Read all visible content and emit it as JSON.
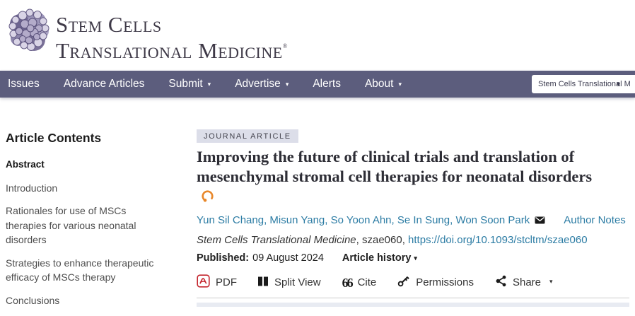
{
  "brand": {
    "logo_line1": "Stem Cells",
    "logo_line2": "Translational Medicine",
    "trademark": "®"
  },
  "nav": {
    "items": [
      {
        "label": "Issues",
        "has_caret": false
      },
      {
        "label": "Advance Articles",
        "has_caret": false
      },
      {
        "label": "Submit",
        "has_caret": true
      },
      {
        "label": "Advertise",
        "has_caret": true
      },
      {
        "label": "Alerts",
        "has_caret": false
      },
      {
        "label": "About",
        "has_caret": true
      }
    ],
    "journal_select": "Stem Cells Translational M"
  },
  "sidebar": {
    "title": "Article Contents",
    "items": [
      {
        "label": "Abstract",
        "active": true
      },
      {
        "label": "Introduction",
        "active": false
      },
      {
        "label": "Rationales for use of MSCs therapies for various neonatal disorders",
        "active": false
      },
      {
        "label": "Strategies to enhance therapeutic efficacy of MSCs therapy",
        "active": false
      },
      {
        "label": "Conclusions",
        "active": false
      }
    ]
  },
  "article": {
    "badge": "JOURNAL ARTICLE",
    "title": "Improving the future of clinical trials and translation of mesenchymal stromal cell therapies for neonatal disorders",
    "authors": [
      "Yun Sil Chang",
      "Misun Yang",
      "So Yoon Ahn",
      "Se In Sung",
      "Won Soon Park"
    ],
    "author_notes": "Author Notes",
    "journal_name": "Stem Cells Translational Medicine",
    "citation_middle": ", szae060,",
    "doi": "https://doi.org/10.1093/stcltm/szae060",
    "published_label": "Published:",
    "published_date": "09 August 2024",
    "history_label": "Article history",
    "toolbar": {
      "pdf": "PDF",
      "split_view": "Split View",
      "cite": "Cite",
      "permissions": "Permissions",
      "share": "Share"
    }
  },
  "colors": {
    "nav_bar": "#5c5d7d",
    "link_blue": "#2c7ca4",
    "open_access_orange": "#e8872a",
    "pdf_red": "#c4262e",
    "badge_bg": "#dcdee9"
  }
}
